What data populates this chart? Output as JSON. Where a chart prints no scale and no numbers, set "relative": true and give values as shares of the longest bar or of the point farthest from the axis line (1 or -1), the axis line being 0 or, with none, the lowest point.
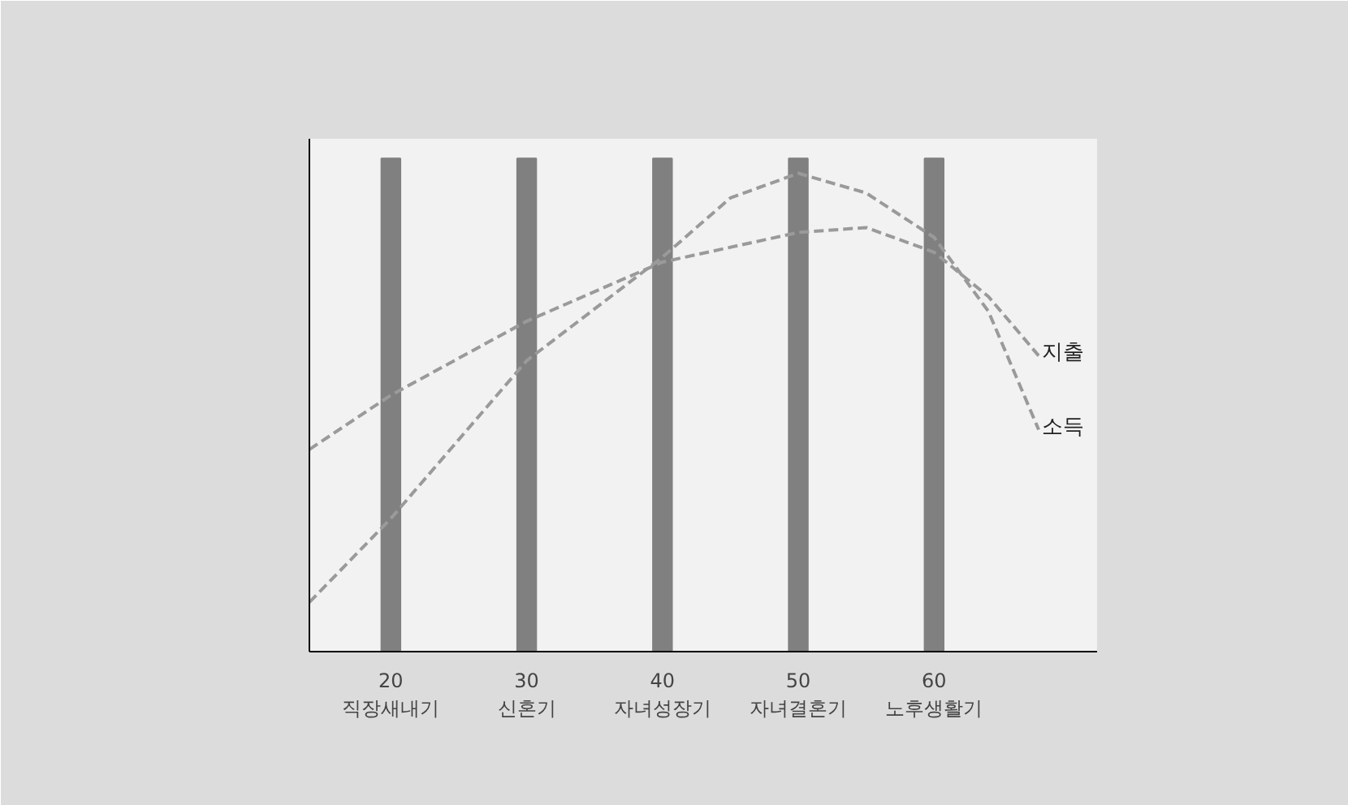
{
  "chart_data": {
    "type": "line",
    "relative": true,
    "xlim": [
      14,
      72
    ],
    "xticks": [
      {
        "value": 20,
        "label": "20\n직장새내기"
      },
      {
        "value": 30,
        "label": "30\n신혼기"
      },
      {
        "value": 40,
        "label": "40\n자녀성장기"
      },
      {
        "value": 50,
        "label": "50\n자녀결혼기"
      },
      {
        "value": 60,
        "label": "60\n노후생활기"
      }
    ],
    "series": [
      {
        "type": "bar",
        "color": "#808080",
        "x": [
          20,
          30,
          40,
          50,
          60
        ],
        "values": [
          1,
          1,
          1,
          1,
          1
        ]
      },
      {
        "name": "지출",
        "color": "#9a9a9a",
        "x": [
          14,
          20,
          30,
          40,
          50,
          55,
          60,
          64,
          67.7
        ],
        "values": [
          0.41,
          0.52,
          0.67,
          0.79,
          0.85,
          0.86,
          0.81,
          0.72,
          0.6
        ]
      },
      {
        "name": "소득",
        "color": "#9a9a9a",
        "x": [
          14,
          20,
          30,
          40,
          45,
          50,
          55,
          60,
          64,
          67.7
        ],
        "values": [
          0.1,
          0.27,
          0.59,
          0.8,
          0.92,
          0.97,
          0.93,
          0.84,
          0.69,
          0.45
        ]
      }
    ],
    "line_style": "dashed",
    "grid": false
  }
}
